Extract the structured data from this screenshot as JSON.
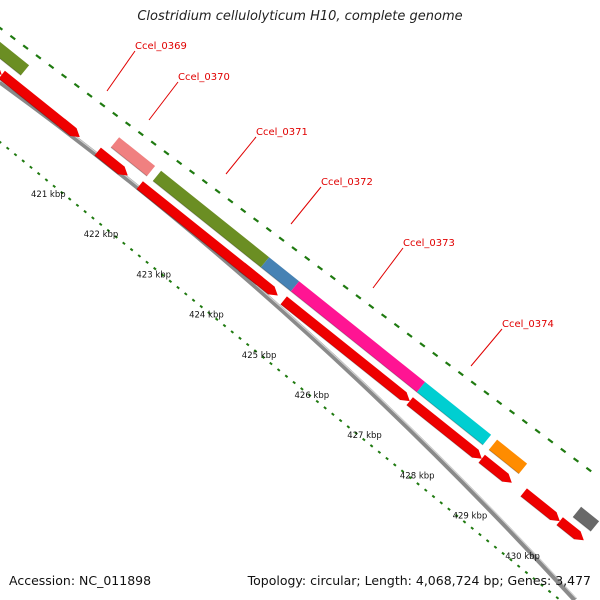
{
  "title": "Clostridium cellulolyticum H10, complete genome",
  "footer": {
    "accession": "Accession: NC_011898",
    "summary": "Topology: circular; Length: 4,068,724 bp; Genes: 3,477"
  },
  "colors": {
    "cds": "#ee0000",
    "backbone": "#8a8a8a",
    "ticks": "#1f7a10",
    "label": "#e00000"
  },
  "gene_labels": [
    "Ccel_0369",
    "Ccel_0370",
    "Ccel_0371",
    "Ccel_0372",
    "Ccel_0373",
    "Ccel_0374"
  ],
  "tick_labels": [
    "421 kbp",
    "422 kbp",
    "423 kbp",
    "424 kbp",
    "425 kbp",
    "426 kbp",
    "427 kbp",
    "428 kbp",
    "429 kbp",
    "430 kbp"
  ],
  "cog_features": [
    {
      "name": "Ccel_0369",
      "color": "#6b8e23"
    },
    {
      "name": "Ccel_0370",
      "color": "#f08080"
    },
    {
      "name": "Ccel_0371",
      "color": "#6b8e23"
    },
    {
      "name": "Ccel_0372",
      "color": "#4682b4"
    },
    {
      "name": "Ccel_0373",
      "color": "#ff1493"
    },
    {
      "name": "Ccel_0374",
      "color": "#00ced1"
    },
    {
      "name": "",
      "color": "#ff8c00"
    },
    {
      "name": "",
      "color": "#696969"
    }
  ]
}
